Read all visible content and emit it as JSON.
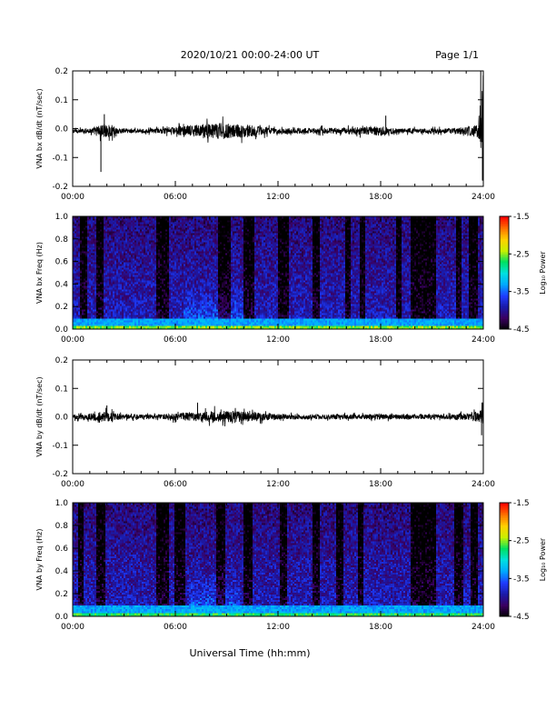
{
  "header": {
    "title": "2020/10/21  00:00-24:00 UT",
    "page": "Page 1/1"
  },
  "x_axis_label": "Universal Time (hh:mm)",
  "colors": {
    "trace": "#000000",
    "colormap": [
      "#000000",
      "#3a0060",
      "#1a1aa8",
      "#1e3cff",
      "#00a8ff",
      "#00e0e0",
      "#00e060",
      "#c8f000",
      "#ffd000",
      "#ff7000",
      "#ff0000"
    ]
  },
  "chart_data": [
    {
      "type": "line",
      "ylabel": "VNA bx dB/dt (nT/sec)",
      "xlim": [
        "00:00",
        "24:00"
      ],
      "ylim": [
        -0.2,
        0.2
      ],
      "x_tick_labels": [
        "00:00",
        "06:00",
        "12:00",
        "18:00",
        "24:00"
      ],
      "y_tick_labels": [
        "0.2",
        "0.1",
        "0.0",
        "-0.1",
        "-0.2"
      ],
      "baseline": -0.008,
      "envelope": {
        "hours": [
          0,
          1.0,
          1.8,
          2.0,
          2.3,
          2.8,
          4.0,
          5.5,
          6.5,
          7.5,
          8.5,
          9.5,
          10.5,
          11.5,
          12.5,
          14.0,
          15.0,
          16.0,
          18.0,
          19.0,
          20.0,
          21.0,
          22.0,
          23.3,
          23.7,
          24.0
        ],
        "amplitude": [
          0.012,
          0.014,
          0.05,
          0.035,
          0.04,
          0.015,
          0.012,
          0.018,
          0.032,
          0.04,
          0.055,
          0.045,
          0.038,
          0.02,
          0.015,
          0.018,
          0.02,
          0.02,
          0.03,
          0.014,
          0.015,
          0.015,
          0.015,
          0.03,
          0.05,
          0.2
        ]
      },
      "spikes": [
        {
          "hour": 1.65,
          "value": -0.15
        },
        {
          "hour": 1.85,
          "value": 0.05
        },
        {
          "hour": 18.3,
          "value": 0.045
        },
        {
          "hour": 23.85,
          "value": 0.2
        },
        {
          "hour": 23.95,
          "value": -0.18
        }
      ]
    },
    {
      "type": "heatmap",
      "ylabel": "VNA bx Freq (Hz)",
      "xlim": [
        "00:00",
        "24:00"
      ],
      "ylim": [
        0.0,
        1.0
      ],
      "x_tick_labels": [
        "00:00",
        "06:00",
        "12:00",
        "18:00",
        "24:00"
      ],
      "y_tick_labels": [
        "1.0",
        "0.8",
        "0.6",
        "0.4",
        "0.2",
        "0.0"
      ],
      "colorbar": {
        "label": "Log₁₀ Power",
        "min": -4.5,
        "max": -1.5,
        "ticks": [
          "-1.5",
          "-2.5",
          "-3.5",
          "-4.5"
        ]
      },
      "low_frequency_band_power": -2.5,
      "quiet_intervals_hours": [
        [
          0.4,
          0.9
        ],
        [
          1.4,
          1.8
        ],
        [
          4.9,
          5.6
        ],
        [
          8.5,
          9.2
        ],
        [
          10.0,
          10.6
        ],
        [
          12.0,
          12.6
        ],
        [
          14.0,
          14.4
        ],
        [
          15.9,
          16.3
        ],
        [
          16.8,
          17.1
        ],
        [
          18.9,
          19.2
        ],
        [
          19.8,
          21.2
        ],
        [
          22.4,
          22.7
        ],
        [
          23.2,
          23.7
        ]
      ],
      "active_intervals_hours": [
        [
          6.5,
          10.0
        ]
      ]
    },
    {
      "type": "line",
      "ylabel": "VNA by dB/dt (nT/sec)",
      "xlim": [
        "00:00",
        "24:00"
      ],
      "ylim": [
        -0.2,
        0.2
      ],
      "x_tick_labels": [
        "00:00",
        "06:00",
        "12:00",
        "18:00",
        "24:00"
      ],
      "y_tick_labels": [
        "0.2",
        "0.1",
        "0.0",
        "-0.1",
        "-0.2"
      ],
      "baseline": 0.0,
      "envelope": {
        "hours": [
          0,
          1.0,
          1.8,
          2.2,
          3.0,
          5.0,
          6.5,
          7.5,
          8.5,
          9.5,
          10.5,
          11.5,
          13.0,
          15.0,
          17.0,
          18.5,
          20.0,
          22.0,
          23.3,
          23.8,
          24.0
        ],
        "amplitude": [
          0.015,
          0.02,
          0.035,
          0.03,
          0.015,
          0.015,
          0.025,
          0.03,
          0.04,
          0.035,
          0.03,
          0.02,
          0.015,
          0.015,
          0.015,
          0.018,
          0.015,
          0.015,
          0.025,
          0.04,
          0.06
        ]
      },
      "spikes": [
        {
          "hour": 2.0,
          "value": 0.04
        },
        {
          "hour": 7.3,
          "value": 0.05
        },
        {
          "hour": 23.9,
          "value": -0.065
        },
        {
          "hour": 23.95,
          "value": 0.05
        }
      ]
    },
    {
      "type": "heatmap",
      "ylabel": "VNA by Freq (Hz)",
      "xlim": [
        "00:00",
        "24:00"
      ],
      "ylim": [
        0.0,
        1.0
      ],
      "x_tick_labels": [
        "00:00",
        "06:00",
        "12:00",
        "18:00",
        "24:00"
      ],
      "y_tick_labels": [
        "1.0",
        "0.8",
        "0.6",
        "0.4",
        "0.2",
        "0.0"
      ],
      "colorbar": {
        "label": "Log₁₀ Power",
        "min": -4.5,
        "max": -1.5,
        "ticks": [
          "-1.5",
          "-2.5",
          "-3.5",
          "-4.5"
        ]
      },
      "low_frequency_band_power": -2.7,
      "quiet_intervals_hours": [
        [
          0.3,
          0.6
        ],
        [
          1.4,
          1.9
        ],
        [
          4.9,
          5.6
        ],
        [
          6.0,
          6.6
        ],
        [
          8.4,
          8.9
        ],
        [
          10.0,
          10.5
        ],
        [
          12.1,
          12.5
        ],
        [
          14.0,
          14.4
        ],
        [
          15.4,
          15.8
        ],
        [
          16.7,
          17.0
        ],
        [
          19.8,
          21.2
        ],
        [
          22.3,
          22.8
        ],
        [
          23.3,
          23.7
        ]
      ],
      "active_intervals_hours": [
        [
          6.8,
          9.8
        ]
      ]
    }
  ]
}
